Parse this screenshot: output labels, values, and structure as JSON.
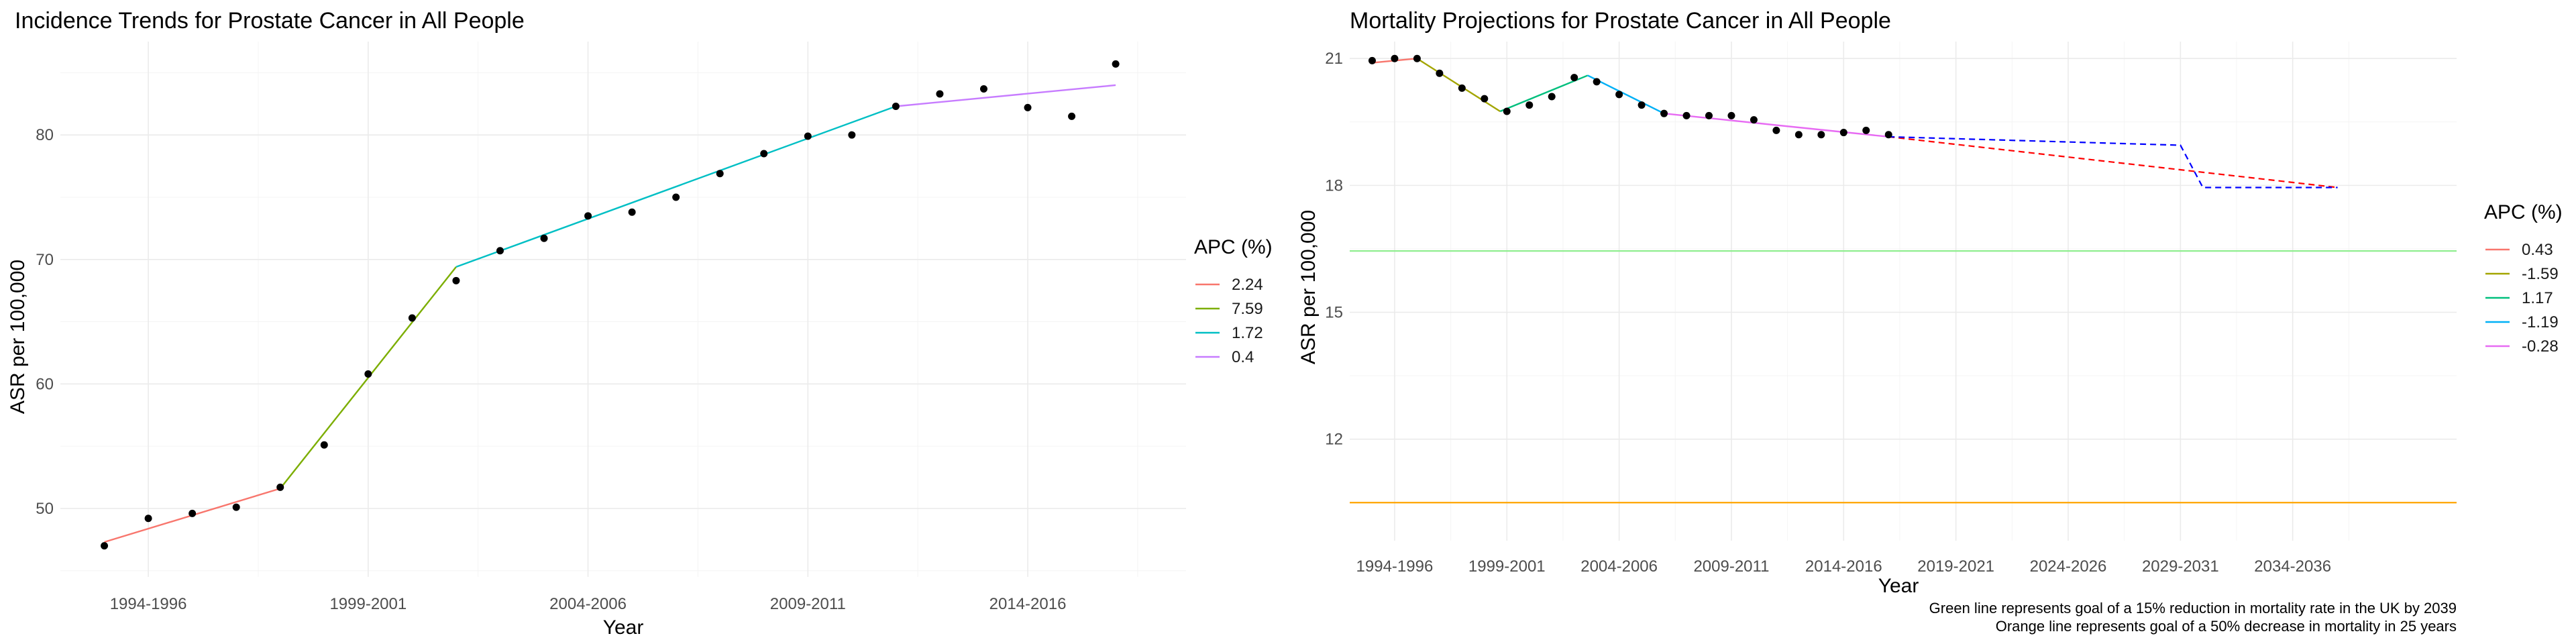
{
  "chart_data": [
    {
      "type": "line",
      "title": "Incidence Trends for Prostate Cancer in All People",
      "xlabel": "Year",
      "ylabel": "ASR per 100,000",
      "ylim": [
        44.5,
        87.5
      ],
      "xlim": [
        0,
        25.6
      ],
      "grid": true,
      "x_ticks": [
        {
          "pos": 2,
          "label": "1994-1996"
        },
        {
          "pos": 7,
          "label": "1999-2001"
        },
        {
          "pos": 12,
          "label": "2004-2006"
        },
        {
          "pos": 17,
          "label": "2009-2011"
        },
        {
          "pos": 22,
          "label": "2014-2016"
        }
      ],
      "y_ticks": [
        50,
        60,
        70,
        80
      ],
      "legend": {
        "title": "APC (%)",
        "position": "right",
        "entries": [
          {
            "label": "2.24",
            "color": "#F8766D"
          },
          {
            "label": "7.59",
            "color": "#7CAE00"
          },
          {
            "label": "1.72",
            "color": "#00BFC4"
          },
          {
            "label": "0.4",
            "color": "#C77CFF"
          }
        ]
      },
      "points": {
        "x": [
          1,
          2,
          3,
          4,
          5,
          6,
          7,
          8,
          9,
          10,
          11,
          12,
          13,
          14,
          15,
          16,
          17,
          18,
          19,
          20,
          21,
          22,
          23,
          24
        ],
        "y": [
          47.0,
          49.2,
          49.6,
          50.1,
          51.7,
          55.1,
          60.8,
          65.3,
          68.3,
          70.7,
          71.7,
          73.5,
          73.8,
          75.0,
          76.9,
          78.5,
          79.9,
          80.0,
          82.3,
          83.3,
          83.7,
          82.2,
          81.5,
          85.7
        ]
      },
      "segments": [
        {
          "name": "2.24",
          "color": "#F8766D",
          "x": [
            1,
            5
          ],
          "y": [
            47.3,
            51.6
          ]
        },
        {
          "name": "7.59",
          "color": "#7CAE00",
          "x": [
            5,
            9
          ],
          "y": [
            51.6,
            69.4
          ]
        },
        {
          "name": "1.72",
          "color": "#00BFC4",
          "x": [
            9,
            19
          ],
          "y": [
            69.4,
            82.3
          ]
        },
        {
          "name": "0.4",
          "color": "#C77CFF",
          "x": [
            19,
            24
          ],
          "y": [
            82.3,
            84.0
          ]
        }
      ]
    },
    {
      "type": "line",
      "title": "Mortality Projections for Prostate Cancer in All People",
      "xlabel": "Year",
      "ylabel": "ASR per 100,000",
      "ylim": [
        9.6,
        21.4
      ],
      "xlim": [
        0,
        49.3
      ],
      "grid": true,
      "x_ticks": [
        {
          "pos": 2,
          "label": "1994-1996"
        },
        {
          "pos": 7,
          "label": "1999-2001"
        },
        {
          "pos": 12,
          "label": "2004-2006"
        },
        {
          "pos": 17,
          "label": "2009-2011"
        },
        {
          "pos": 22,
          "label": "2014-2016"
        },
        {
          "pos": 27,
          "label": "2019-2021"
        },
        {
          "pos": 32,
          "label": "2024-2026"
        },
        {
          "pos": 37,
          "label": "2029-2031"
        },
        {
          "pos": 42,
          "label": "2034-2036"
        }
      ],
      "y_ticks": [
        12,
        15,
        18,
        21
      ],
      "legend": {
        "title": "APC (%)",
        "position": "right",
        "entries": [
          {
            "label": "0.43",
            "color": "#F8766D"
          },
          {
            "label": "-1.59",
            "color": "#A3A500"
          },
          {
            "label": "1.17",
            "color": "#00BF7D"
          },
          {
            "label": "-1.19",
            "color": "#00B0F6"
          },
          {
            "label": "-0.28",
            "color": "#E76BF3"
          }
        ]
      },
      "points": {
        "x": [
          1,
          2,
          3,
          4,
          5,
          6,
          7,
          8,
          9,
          10,
          11,
          12,
          13,
          14,
          15,
          16,
          17,
          18,
          19,
          20,
          21,
          22,
          23,
          24
        ],
        "y": [
          20.95,
          21.0,
          21.0,
          20.65,
          20.3,
          20.05,
          19.75,
          19.9,
          20.1,
          20.55,
          20.45,
          20.15,
          19.9,
          19.7,
          19.65,
          19.65,
          19.65,
          19.55,
          19.3,
          19.2,
          19.2,
          19.25,
          19.3,
          19.2
        ]
      },
      "segments": [
        {
          "name": "0.43",
          "color": "#F8766D",
          "x": [
            1,
            3
          ],
          "y": [
            20.9,
            21.0
          ]
        },
        {
          "name": "-1.59",
          "color": "#A3A500",
          "x": [
            3,
            6.7
          ],
          "y": [
            21.0,
            19.75
          ]
        },
        {
          "name": "1.17",
          "color": "#00BF7D",
          "x": [
            6.7,
            10.6
          ],
          "y": [
            19.75,
            20.6
          ]
        },
        {
          "name": "-1.19",
          "color": "#00B0F6",
          "x": [
            10.6,
            14
          ],
          "y": [
            20.6,
            19.7
          ]
        },
        {
          "name": "-0.28",
          "color": "#E76BF3",
          "x": [
            14,
            24
          ],
          "y": [
            19.7,
            19.15
          ]
        }
      ],
      "projections": [
        {
          "style": "dashed",
          "color": "#FF0000",
          "x": [
            24,
            44
          ],
          "y": [
            19.15,
            17.95
          ]
        },
        {
          "style": "dashed",
          "color": "#0000FF",
          "x": [
            24,
            37,
            38,
            44
          ],
          "y": [
            19.15,
            18.95,
            17.95,
            17.95
          ]
        }
      ],
      "reference_lines": [
        {
          "color": "#90EE90",
          "y": 16.45
        },
        {
          "color": "#FFA500",
          "y": 10.5
        }
      ],
      "captions": [
        "Green line represents goal of a 15% reduction in mortality rate in the UK by 2039",
        "Orange line represents goal of a 50% decrease in mortality in 25 years"
      ]
    }
  ]
}
